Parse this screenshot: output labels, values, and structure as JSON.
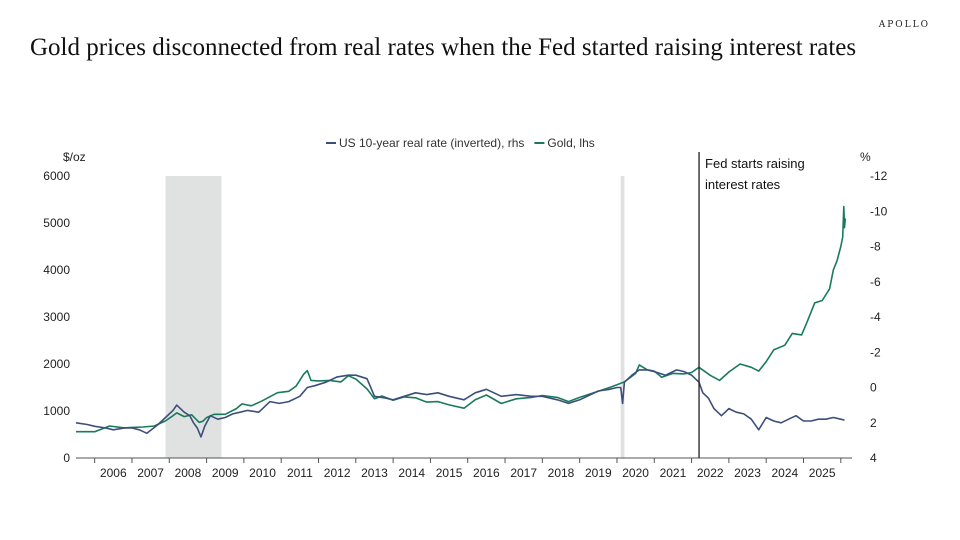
{
  "brand": "APOLLO",
  "title": "Gold prices disconnected from real rates when the Fed started raising interest rates",
  "chart_data": {
    "type": "line",
    "legend": [
      {
        "name": "US 10-year real rate (inverted), rhs",
        "color": "#3b4f7a"
      },
      {
        "name": "Gold, lhs",
        "color": "#1a7a5c"
      }
    ],
    "left_axis": {
      "label": "$/oz",
      "ticks": [
        0,
        1000,
        2000,
        3000,
        4000,
        5000,
        6000
      ],
      "range": [
        0,
        6000
      ]
    },
    "right_axis": {
      "label": "%",
      "ticks": [
        4,
        2,
        0,
        -2,
        -4,
        -6,
        -8,
        -10,
        -12
      ],
      "range": [
        4,
        -12
      ],
      "inverted": true
    },
    "x_axis": {
      "range": [
        2005.5,
        2026.3
      ],
      "tick_labels": [
        "2006",
        "2007",
        "2008",
        "2009",
        "2010",
        "2011",
        "2012",
        "2013",
        "2014",
        "2015",
        "2016",
        "2017",
        "2018",
        "2019",
        "2020",
        "2021",
        "2022",
        "2023",
        "2024",
        "2025"
      ]
    },
    "recessions": [
      [
        2007.9,
        2009.4
      ],
      [
        2020.1,
        2020.2
      ]
    ],
    "annotation": {
      "x": 2022.2,
      "lines": [
        "Fed starts raising",
        "interest rates"
      ]
    },
    "series": [
      {
        "name": "Gold, lhs",
        "axis": "left",
        "color": "#1a7a5c",
        "points": [
          [
            2005.5,
            560
          ],
          [
            2006.0,
            560
          ],
          [
            2006.4,
            680
          ],
          [
            2006.8,
            640
          ],
          [
            2007.0,
            650
          ],
          [
            2007.3,
            660
          ],
          [
            2007.6,
            680
          ],
          [
            2007.9,
            790
          ],
          [
            2008.1,
            900
          ],
          [
            2008.2,
            960
          ],
          [
            2008.4,
            880
          ],
          [
            2008.6,
            920
          ],
          [
            2008.8,
            760
          ],
          [
            2008.9,
            780
          ],
          [
            2009.0,
            860
          ],
          [
            2009.2,
            930
          ],
          [
            2009.5,
            930
          ],
          [
            2009.8,
            1050
          ],
          [
            2009.95,
            1150
          ],
          [
            2010.2,
            1110
          ],
          [
            2010.5,
            1220
          ],
          [
            2010.9,
            1390
          ],
          [
            2011.2,
            1420
          ],
          [
            2011.4,
            1530
          ],
          [
            2011.6,
            1780
          ],
          [
            2011.7,
            1860
          ],
          [
            2011.8,
            1650
          ],
          [
            2012.0,
            1640
          ],
          [
            2012.3,
            1650
          ],
          [
            2012.6,
            1620
          ],
          [
            2012.8,
            1750
          ],
          [
            2013.0,
            1680
          ],
          [
            2013.3,
            1470
          ],
          [
            2013.5,
            1260
          ],
          [
            2013.7,
            1320
          ],
          [
            2014.0,
            1230
          ],
          [
            2014.3,
            1300
          ],
          [
            2014.6,
            1280
          ],
          [
            2014.9,
            1190
          ],
          [
            2015.2,
            1200
          ],
          [
            2015.5,
            1130
          ],
          [
            2015.9,
            1060
          ],
          [
            2016.2,
            1240
          ],
          [
            2016.5,
            1340
          ],
          [
            2016.9,
            1160
          ],
          [
            2017.3,
            1260
          ],
          [
            2017.7,
            1290
          ],
          [
            2018.0,
            1330
          ],
          [
            2018.4,
            1290
          ],
          [
            2018.7,
            1200
          ],
          [
            2019.0,
            1290
          ],
          [
            2019.5,
            1420
          ],
          [
            2019.8,
            1500
          ],
          [
            2020.0,
            1560
          ],
          [
            2020.2,
            1620
          ],
          [
            2020.5,
            1800
          ],
          [
            2020.6,
            1980
          ],
          [
            2020.8,
            1880
          ],
          [
            2021.0,
            1850
          ],
          [
            2021.2,
            1720
          ],
          [
            2021.5,
            1800
          ],
          [
            2021.8,
            1790
          ],
          [
            2022.0,
            1820
          ],
          [
            2022.2,
            1930
          ],
          [
            2022.5,
            1760
          ],
          [
            2022.75,
            1650
          ],
          [
            2023.0,
            1830
          ],
          [
            2023.3,
            2000
          ],
          [
            2023.6,
            1930
          ],
          [
            2023.8,
            1850
          ],
          [
            2024.0,
            2050
          ],
          [
            2024.2,
            2300
          ],
          [
            2024.5,
            2400
          ],
          [
            2024.7,
            2650
          ],
          [
            2024.95,
            2620
          ],
          [
            2025.1,
            2900
          ],
          [
            2025.3,
            3300
          ],
          [
            2025.5,
            3350
          ],
          [
            2025.7,
            3600
          ],
          [
            2025.8,
            4000
          ],
          [
            2025.9,
            4200
          ],
          [
            2026.0,
            4500
          ],
          [
            2026.05,
            4700
          ],
          [
            2026.08,
            5350
          ],
          [
            2026.1,
            4900
          ],
          [
            2026.12,
            5100
          ]
        ]
      },
      {
        "name": "US 10-year real rate (inverted), rhs",
        "axis": "right",
        "color": "#3b4f7a",
        "points": [
          [
            2005.5,
            2.0
          ],
          [
            2005.8,
            2.1
          ],
          [
            2006.0,
            2.2
          ],
          [
            2006.3,
            2.3
          ],
          [
            2006.5,
            2.4
          ],
          [
            2006.8,
            2.3
          ],
          [
            2007.0,
            2.3
          ],
          [
            2007.2,
            2.4
          ],
          [
            2007.4,
            2.6
          ],
          [
            2007.7,
            2.1
          ],
          [
            2007.9,
            1.7
          ],
          [
            2008.1,
            1.3
          ],
          [
            2008.2,
            1.0
          ],
          [
            2008.4,
            1.4
          ],
          [
            2008.55,
            1.6
          ],
          [
            2008.65,
            2.0
          ],
          [
            2008.75,
            2.3
          ],
          [
            2008.85,
            2.8
          ],
          [
            2008.95,
            2.2
          ],
          [
            2009.1,
            1.6
          ],
          [
            2009.3,
            1.8
          ],
          [
            2009.5,
            1.7
          ],
          [
            2009.7,
            1.5
          ],
          [
            2009.9,
            1.4
          ],
          [
            2010.1,
            1.3
          ],
          [
            2010.4,
            1.4
          ],
          [
            2010.7,
            0.8
          ],
          [
            2010.95,
            0.9
          ],
          [
            2011.2,
            0.8
          ],
          [
            2011.5,
            0.5
          ],
          [
            2011.7,
            0.0
          ],
          [
            2011.9,
            -0.1
          ],
          [
            2012.2,
            -0.3
          ],
          [
            2012.5,
            -0.6
          ],
          [
            2012.8,
            -0.7
          ],
          [
            2013.0,
            -0.7
          ],
          [
            2013.3,
            -0.5
          ],
          [
            2013.5,
            0.5
          ],
          [
            2013.8,
            0.6
          ],
          [
            2014.0,
            0.7
          ],
          [
            2014.3,
            0.5
          ],
          [
            2014.6,
            0.3
          ],
          [
            2014.9,
            0.4
          ],
          [
            2015.2,
            0.3
          ],
          [
            2015.5,
            0.5
          ],
          [
            2015.9,
            0.7
          ],
          [
            2016.2,
            0.3
          ],
          [
            2016.5,
            0.1
          ],
          [
            2016.9,
            0.5
          ],
          [
            2017.3,
            0.4
          ],
          [
            2017.7,
            0.5
          ],
          [
            2018.0,
            0.5
          ],
          [
            2018.4,
            0.7
          ],
          [
            2018.7,
            0.9
          ],
          [
            2019.0,
            0.7
          ],
          [
            2019.5,
            0.2
          ],
          [
            2019.8,
            0.1
          ],
          [
            2020.0,
            0.0
          ],
          [
            2020.1,
            0.0
          ],
          [
            2020.15,
            0.9
          ],
          [
            2020.2,
            -0.3
          ],
          [
            2020.4,
            -0.7
          ],
          [
            2020.6,
            -1.0
          ],
          [
            2020.8,
            -1.0
          ],
          [
            2021.0,
            -0.9
          ],
          [
            2021.3,
            -0.7
          ],
          [
            2021.6,
            -1.0
          ],
          [
            2021.8,
            -0.9
          ],
          [
            2022.0,
            -0.7
          ],
          [
            2022.2,
            -0.3
          ],
          [
            2022.3,
            0.3
          ],
          [
            2022.45,
            0.6
          ],
          [
            2022.6,
            1.2
          ],
          [
            2022.8,
            1.6
          ],
          [
            2022.9,
            1.4
          ],
          [
            2023.0,
            1.2
          ],
          [
            2023.2,
            1.4
          ],
          [
            2023.4,
            1.5
          ],
          [
            2023.6,
            1.8
          ],
          [
            2023.8,
            2.4
          ],
          [
            2024.0,
            1.7
          ],
          [
            2024.2,
            1.9
          ],
          [
            2024.4,
            2.0
          ],
          [
            2024.6,
            1.8
          ],
          [
            2024.8,
            1.6
          ],
          [
            2025.0,
            1.9
          ],
          [
            2025.2,
            1.9
          ],
          [
            2025.4,
            1.8
          ],
          [
            2025.6,
            1.8
          ],
          [
            2025.8,
            1.7
          ],
          [
            2026.0,
            1.8
          ],
          [
            2026.1,
            1.85
          ]
        ]
      }
    ]
  }
}
